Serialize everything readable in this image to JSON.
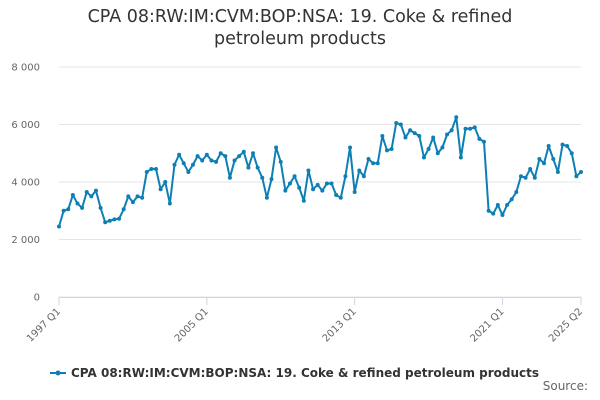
{
  "chart_data": {
    "type": "line",
    "title": "CPA 08:RW:IM:CVM:BOP:NSA: 19. Coke & refined petroleum products",
    "xlabel": "",
    "ylabel": "",
    "ylim": [
      0,
      8000
    ],
    "yticks": [
      0,
      2000,
      4000,
      6000,
      8000
    ],
    "ytick_labels": [
      "0",
      "2 000",
      "4 000",
      "6 000",
      "8 000"
    ],
    "x_tick_labels": [
      "1997 Q1",
      "2005 Q1",
      "2013 Q1",
      "2021 Q1",
      "2025 Q2"
    ],
    "grid": true,
    "legend_position": "bottom",
    "series": [
      {
        "name": "CPA 08:RW:IM:CVM:BOP:NSA: 19. Coke & refined petroleum products",
        "color": "#0e7fb4",
        "x": [
          "1997 Q1",
          "1997 Q2",
          "1997 Q3",
          "1997 Q4",
          "1998 Q1",
          "1998 Q2",
          "1998 Q3",
          "1998 Q4",
          "1999 Q1",
          "1999 Q2",
          "1999 Q3",
          "1999 Q4",
          "2000 Q1",
          "2000 Q2",
          "2000 Q3",
          "2000 Q4",
          "2001 Q1",
          "2001 Q2",
          "2001 Q3",
          "2001 Q4",
          "2002 Q1",
          "2002 Q2",
          "2002 Q3",
          "2002 Q4",
          "2003 Q1",
          "2003 Q2",
          "2003 Q3",
          "2003 Q4",
          "2004 Q1",
          "2004 Q2",
          "2004 Q3",
          "2004 Q4",
          "2005 Q1",
          "2005 Q2",
          "2005 Q3",
          "2005 Q4",
          "2006 Q1",
          "2006 Q2",
          "2006 Q3",
          "2006 Q4",
          "2007 Q1",
          "2007 Q2",
          "2007 Q3",
          "2007 Q4",
          "2008 Q1",
          "2008 Q2",
          "2008 Q3",
          "2008 Q4",
          "2009 Q1",
          "2009 Q2",
          "2009 Q3",
          "2009 Q4",
          "2010 Q1",
          "2010 Q2",
          "2010 Q3",
          "2010 Q4",
          "2011 Q1",
          "2011 Q2",
          "2011 Q3",
          "2011 Q4",
          "2012 Q1",
          "2012 Q2",
          "2012 Q3",
          "2012 Q4",
          "2013 Q1",
          "2013 Q2",
          "2013 Q3",
          "2013 Q4",
          "2014 Q1",
          "2014 Q2",
          "2014 Q3",
          "2014 Q4",
          "2015 Q1",
          "2015 Q2",
          "2015 Q3",
          "2015 Q4",
          "2016 Q1",
          "2016 Q2",
          "2016 Q3",
          "2016 Q4",
          "2017 Q1",
          "2017 Q2",
          "2017 Q3",
          "2017 Q4",
          "2018 Q1",
          "2018 Q2",
          "2018 Q3",
          "2018 Q4",
          "2019 Q1",
          "2019 Q2",
          "2019 Q3",
          "2019 Q4",
          "2020 Q1",
          "2020 Q2",
          "2020 Q3",
          "2020 Q4",
          "2021 Q1",
          "2021 Q2",
          "2021 Q3",
          "2021 Q4",
          "2022 Q1",
          "2022 Q2",
          "2022 Q3",
          "2022 Q4",
          "2023 Q1",
          "2023 Q2",
          "2023 Q3",
          "2023 Q4",
          "2024 Q1",
          "2024 Q2",
          "2024 Q3",
          "2024 Q4",
          "2025 Q1",
          "2025 Q2"
        ],
        "values": [
          2450,
          3000,
          3050,
          3550,
          3250,
          3100,
          3650,
          3500,
          3700,
          3100,
          2600,
          2650,
          2700,
          2720,
          3050,
          3500,
          3300,
          3500,
          3450,
          4350,
          4450,
          4450,
          3750,
          4000,
          3250,
          4600,
          4950,
          4650,
          4350,
          4600,
          4900,
          4750,
          4950,
          4750,
          4700,
          5000,
          4900,
          4150,
          4750,
          4900,
          5050,
          4500,
          5000,
          4500,
          4150,
          3450,
          4100,
          5200,
          4700,
          3700,
          3950,
          4200,
          3800,
          3350,
          4400,
          3750,
          3900,
          3700,
          3950,
          3950,
          3550,
          3450,
          4200,
          5200,
          3650,
          4400,
          4200,
          4800,
          4650,
          4650,
          5600,
          5100,
          5150,
          6050,
          6000,
          5550,
          5800,
          5700,
          5600,
          4850,
          5150,
          5550,
          5000,
          5200,
          5650,
          5800,
          6250,
          4850,
          5850,
          5850,
          5900,
          5500,
          5400,
          3000,
          2900,
          3200,
          2850,
          3200,
          3400,
          3650,
          4200,
          4150,
          4450,
          4150,
          4800,
          4650,
          5250,
          4800,
          4350,
          5300,
          5250,
          5000,
          4200,
          4350
        ]
      }
    ]
  },
  "source_label": "Source:"
}
